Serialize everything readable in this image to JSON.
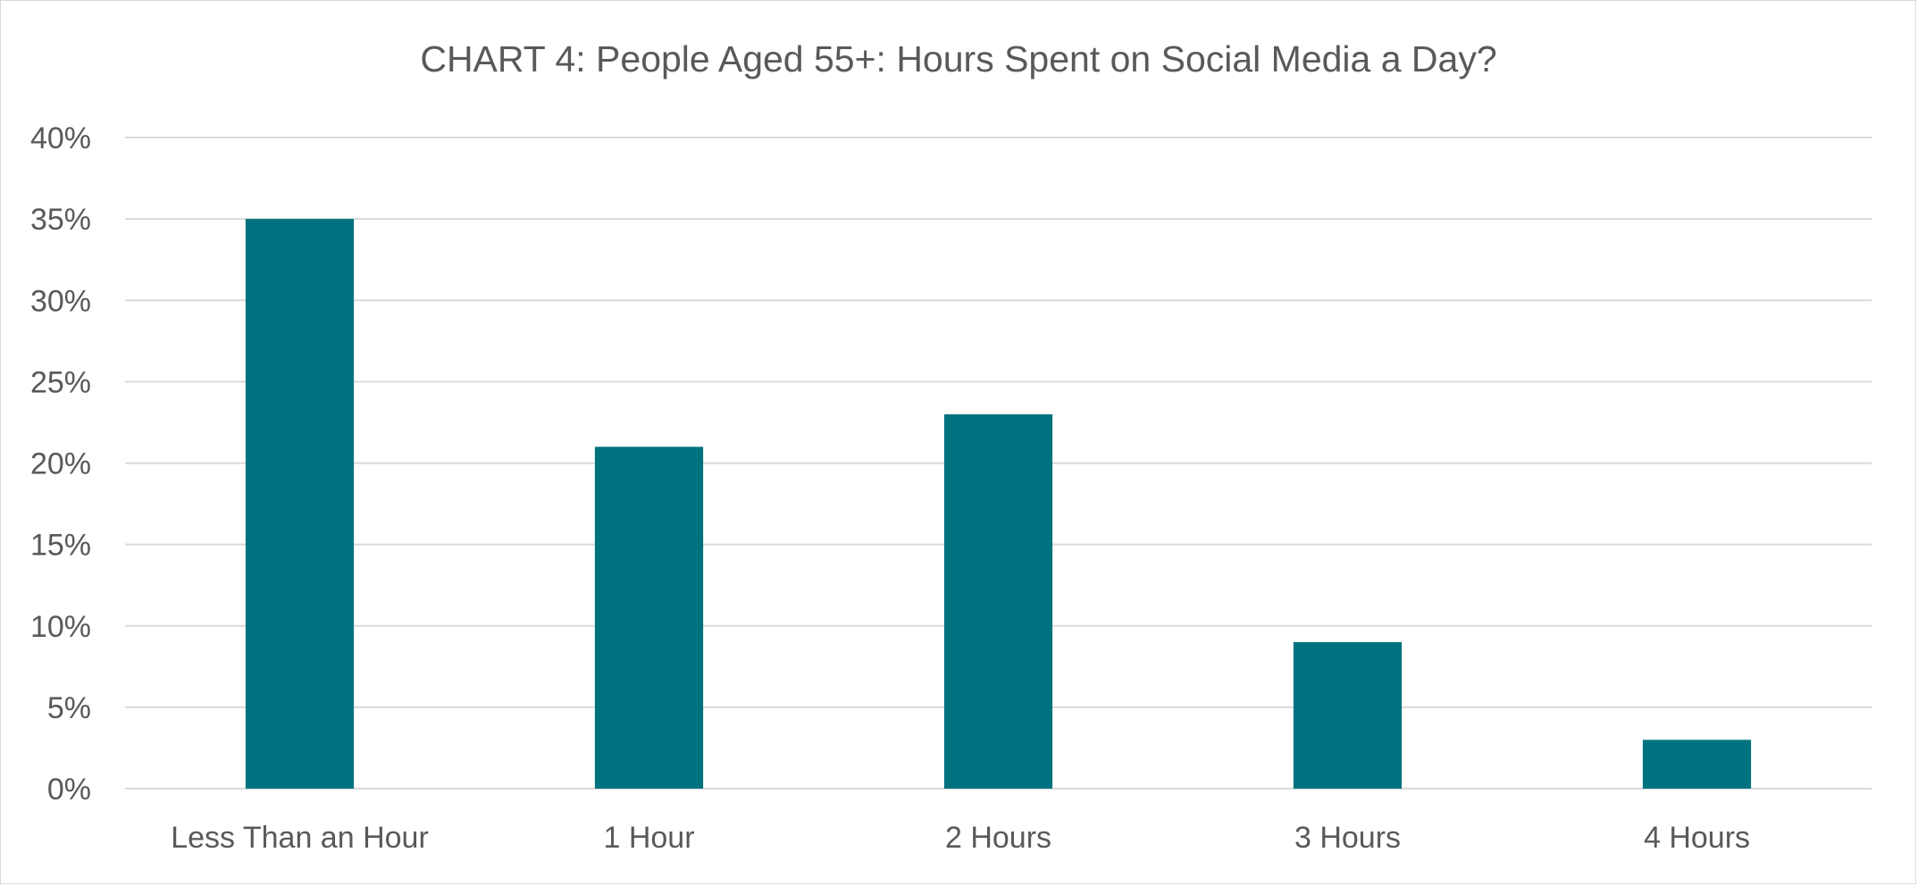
{
  "chart_data": {
    "type": "bar",
    "title": "CHART 4: People Aged 55+: Hours Spent on Social Media a Day?",
    "xlabel": "",
    "ylabel": "",
    "categories": [
      "Less Than an Hour",
      "1 Hour",
      "2 Hours",
      "3 Hours",
      "4 Hours"
    ],
    "values": [
      35,
      21,
      23,
      9,
      3
    ],
    "value_format": "percent",
    "ylim": [
      0,
      40
    ],
    "y_ticks": [
      0,
      5,
      10,
      15,
      20,
      25,
      30,
      35,
      40
    ],
    "y_tick_labels": [
      "0%",
      "5%",
      "10%",
      "15%",
      "20%",
      "25%",
      "30%",
      "35%",
      "40%"
    ],
    "grid": true,
    "legend": "none",
    "bar_color": "#00727F",
    "grid_color": "#D9D9D9",
    "text_color": "#595959"
  }
}
